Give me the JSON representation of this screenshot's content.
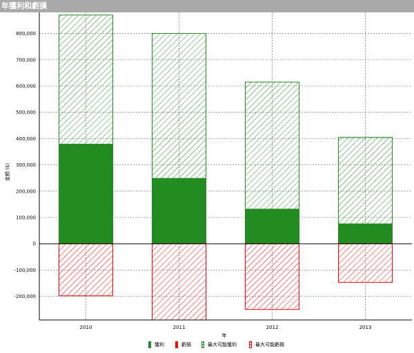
{
  "window": {
    "title": "年獲利和虧損"
  },
  "chart_data": {
    "type": "bar",
    "categories": [
      "2010",
      "2011",
      "2012",
      "2013"
    ],
    "series": [
      {
        "name": "獲利",
        "color": "#228b22",
        "style": "solid",
        "values": [
          380000,
          250000,
          133000,
          77000
        ]
      },
      {
        "name": "虧損",
        "color": "#ff0000",
        "style": "solid",
        "values": [
          0,
          0,
          0,
          0
        ]
      },
      {
        "name": "最大可能獲利",
        "color": "#228b22",
        "style": "hatched",
        "values": [
          870000,
          800000,
          615000,
          405000
        ]
      },
      {
        "name": "最大可能虧損",
        "color": "#ff0000",
        "style": "hatched",
        "values": [
          -198000,
          -290000,
          -250000,
          -147000
        ]
      }
    ],
    "xlabel": "年",
    "ylabel": "金額 ($)",
    "ylim": [
      -290000,
      880000
    ],
    "yticks": [
      -200000,
      -100000,
      0,
      100000,
      200000,
      300000,
      400000,
      500000,
      600000,
      700000,
      800000
    ],
    "ytick_labels": [
      "-200,000",
      "-100,000",
      "0",
      "100,000",
      "200,000",
      "300,000",
      "400,000",
      "500,000",
      "600,000",
      "700,000",
      "800,000"
    ],
    "grid": true,
    "legend": "bottom"
  }
}
